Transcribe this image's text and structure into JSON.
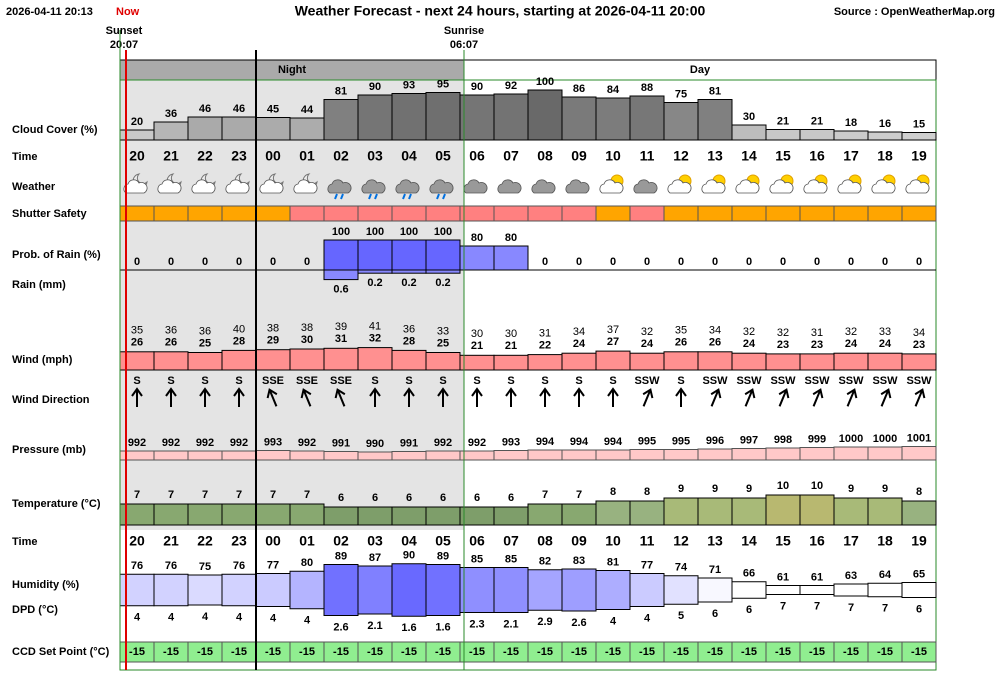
{
  "header": {
    "timestamp": "2026-04-11 20:13",
    "now": "Now",
    "title": "Weather Forecast - next 24 hours, starting at 2026-04-11 20:00",
    "source": "Source : OpenWeatherMap.org"
  },
  "markers": {
    "sunset_label": "Sunset",
    "sunset_time": "20:07",
    "sunrise_label": "Sunrise",
    "sunrise_time": "06:07"
  },
  "periods": {
    "night": "Night",
    "day": "Day"
  },
  "row_labels": {
    "cloud": "Cloud Cover (%)",
    "time": "Time",
    "weather": "Weather",
    "shutter": "Shutter Safety",
    "rain_prob": "Prob. of Rain (%)",
    "rain_mm": "Rain (mm)",
    "wind": "Wind (mph)",
    "wind_dir": "Wind Direction",
    "pressure": "Pressure (mb)",
    "temperature": "Temperature (°C)",
    "time2": "Time",
    "humidity": "Humidity (%)",
    "dpd": "DPD (°C)",
    "ccd": "CCD Set Point (°C)"
  },
  "hours": [
    "20",
    "21",
    "22",
    "23",
    "00",
    "01",
    "02",
    "03",
    "04",
    "05",
    "06",
    "07",
    "08",
    "09",
    "10",
    "11",
    "12",
    "13",
    "14",
    "15",
    "16",
    "17",
    "18",
    "19"
  ],
  "cloud": [
    20,
    36,
    46,
    46,
    45,
    44,
    81,
    90,
    93,
    95,
    90,
    92,
    100,
    86,
    84,
    88,
    75,
    81,
    30,
    21,
    21,
    18,
    16,
    15
  ],
  "shutter_colors": [
    "#ffa500",
    "#ffa500",
    "#ffa500",
    "#ffa500",
    "#ffa500",
    "#ff8080",
    "#ff8080",
    "#ff8080",
    "#ff8080",
    "#ff8080",
    "#ff8080",
    "#ff8080",
    "#ff8080",
    "#ff8080",
    "#ffa500",
    "#ff8080",
    "#ffa500",
    "#ffa500",
    "#ffa500",
    "#ffa500",
    "#ffa500",
    "#ffa500",
    "#ffa500",
    "#ffa500"
  ],
  "rain_prob": [
    0,
    0,
    0,
    0,
    0,
    0,
    100,
    100,
    100,
    100,
    80,
    80,
    0,
    0,
    0,
    0,
    0,
    0,
    0,
    0,
    0,
    0,
    0,
    0
  ],
  "rain_mm": [
    null,
    null,
    null,
    null,
    null,
    null,
    0.6,
    0.2,
    0.2,
    0.2,
    null,
    null,
    null,
    null,
    null,
    null,
    null,
    null,
    null,
    null,
    null,
    null,
    null,
    null
  ],
  "wind_gust": [
    35,
    36,
    36,
    40,
    38,
    38,
    39,
    41,
    36,
    33,
    30,
    30,
    31,
    34,
    37,
    32,
    35,
    34,
    32,
    32,
    31,
    32,
    33,
    34
  ],
  "wind_speed": [
    26,
    26,
    25,
    28,
    29,
    30,
    31,
    32,
    28,
    25,
    21,
    21,
    22,
    24,
    27,
    24,
    26,
    26,
    24,
    23,
    23,
    24,
    24,
    23
  ],
  "wind_dir": [
    "S",
    "S",
    "S",
    "S",
    "SSE",
    "SSE",
    "SSE",
    "S",
    "S",
    "S",
    "S",
    "S",
    "S",
    "S",
    "S",
    "SSW",
    "S",
    "SSW",
    "SSW",
    "SSW",
    "SSW",
    "SSW",
    "SSW",
    "SSW"
  ],
  "pressure": [
    992,
    992,
    992,
    992,
    993,
    992,
    991,
    990,
    991,
    992,
    992,
    993,
    994,
    994,
    994,
    995,
    995,
    996,
    997,
    998,
    999,
    1000,
    1000,
    1001
  ],
  "temperature": [
    7,
    7,
    7,
    7,
    7,
    7,
    6,
    6,
    6,
    6,
    6,
    6,
    7,
    7,
    8,
    8,
    9,
    9,
    9,
    10,
    10,
    9,
    9,
    8
  ],
  "humidity": [
    76,
    76,
    75,
    76,
    77,
    80,
    89,
    87,
    90,
    89,
    85,
    85,
    82,
    83,
    81,
    77,
    74,
    71,
    66,
    61,
    61,
    63,
    64,
    65
  ],
  "dpd": [
    4,
    4,
    4,
    4,
    4,
    4,
    2.6,
    2.1,
    1.6,
    1.6,
    2.3,
    2.1,
    2.9,
    2.6,
    4,
    4,
    5,
    6,
    6,
    7,
    7,
    7,
    7,
    6
  ],
  "ccd": [
    -15,
    -15,
    -15,
    -15,
    -15,
    -15,
    -15,
    -15,
    -15,
    -15,
    -15,
    -15,
    -15,
    -15,
    -15,
    -15,
    -15,
    -15,
    -15,
    -15,
    -15,
    -15,
    -15,
    -15
  ]
}
